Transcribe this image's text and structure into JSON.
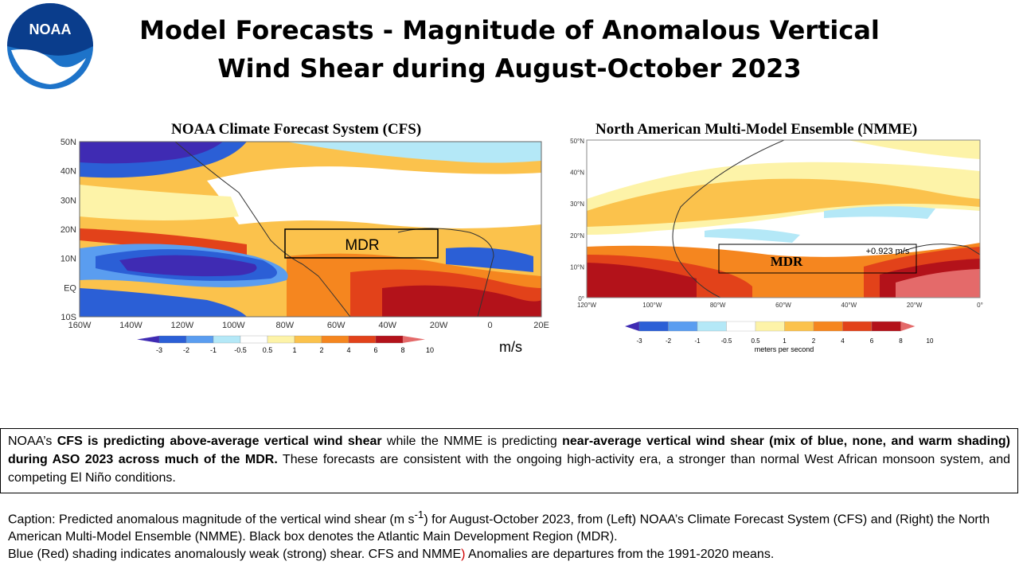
{
  "logo": {
    "text": "NOAA",
    "icon": "noaa-logo-icon",
    "colors": {
      "blue": "#1d73c9",
      "dark": "#0a3d8c"
    }
  },
  "title": {
    "line1": "Model Forecasts - Magnitude of Anomalous Vertical",
    "line2": "Wind Shear during August-October 2023"
  },
  "cfs_map": {
    "title": "NOAA Climate Forecast System (CFS)",
    "lat_labels": [
      "50N",
      "40N",
      "30N",
      "20N",
      "10N",
      "EQ",
      "10S"
    ],
    "lon_labels": [
      "160W",
      "140W",
      "120W",
      "100W",
      "80W",
      "60W",
      "40W",
      "20W",
      "0",
      "20E"
    ],
    "region_label": "MDR",
    "colorbar": {
      "labels": [
        "-3",
        "-2",
        "-1",
        "-0.5",
        "0.5",
        "1",
        "2",
        "4",
        "6",
        "8",
        "10"
      ],
      "unit": "m/s"
    }
  },
  "nmme_map": {
    "title": "North American Multi-Model Ensemble (NMME)",
    "lat_labels": [
      "50°N",
      "40°N",
      "30°N",
      "20°N",
      "10°N",
      "0°"
    ],
    "lon_labels": [
      "120°W",
      "100°W",
      "80°W",
      "60°W",
      "40°W",
      "20°W",
      "0°"
    ],
    "region_label": "MDR",
    "region_value": "+0.923 m/s",
    "colorbar": {
      "labels": [
        "-3",
        "-2",
        "-1",
        "-0.5",
        "0.5",
        "1",
        "2",
        "4",
        "6",
        "8",
        "10"
      ],
      "unit": "meters per second"
    }
  },
  "palette": [
    "#3f2bb3",
    "#2b5fd6",
    "#5a9df0",
    "#b4e8f7",
    "#ffffff",
    "#fdf3a8",
    "#fbc24c",
    "#f5861f",
    "#e2421a",
    "#b3121a",
    "#e46a6a"
  ],
  "summary": {
    "p1": "NOAA’s ",
    "b1": "CFS is predicting above-average vertical wind shear",
    "p2": " while the NMME is predicting ",
    "b2": "near-average vertical wind shear (mix of blue, none, and warm shading) during ASO 2023 across much of the MDR.",
    "p3": " These forecasts are consistent with the ongoing high-activity era, a stronger than normal West African monsoon system, and competing El Niño conditions."
  },
  "caption": {
    "line1a": "Caption: Predicted anomalous magnitude of the vertical wind shear (m s",
    "line1sup": "-1",
    "line1b": ") for August-October 2023, from (Left) NOAA’s Climate Forecast System (CFS) and (Right) the North American Multi-Model Ensemble (NMME). Black box denotes the Atlantic Main Development Region (MDR).",
    "line2a": "Blue (Red) shading indicates anomalously weak (strong) shear. CFS and NMME",
    "line2mark": ")",
    "line2b": " Anomalies are departures from the 1991-2020 means."
  }
}
